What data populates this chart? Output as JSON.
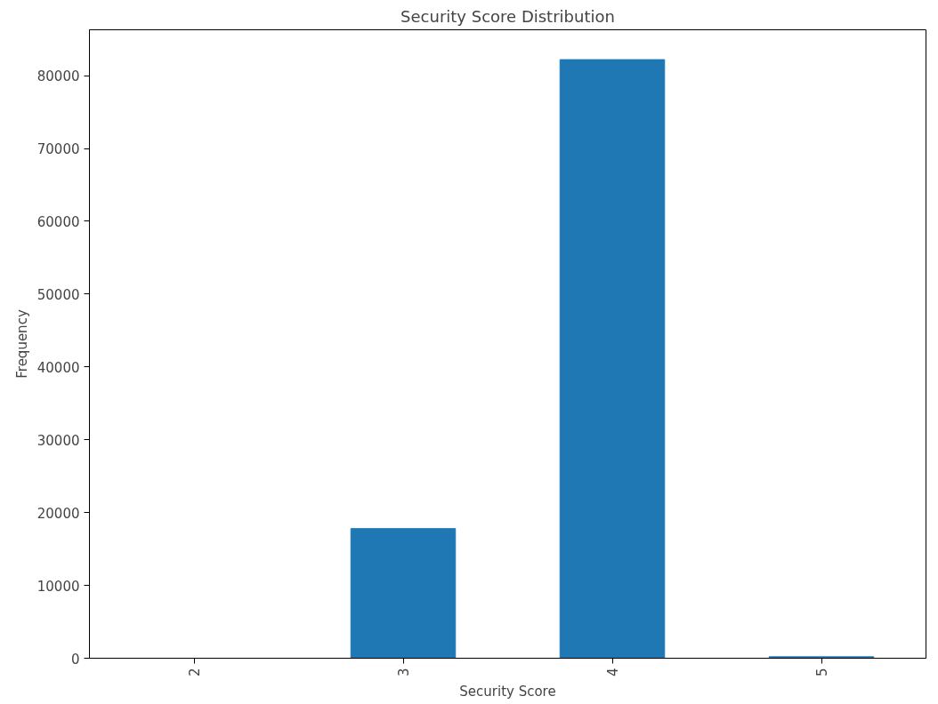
{
  "chart_data": {
    "type": "bar",
    "title": "Security Score Distribution",
    "xlabel": "Security Score",
    "ylabel": "Frequency",
    "categories": [
      "2",
      "3",
      "4",
      "5"
    ],
    "values": [
      0,
      17800,
      82200,
      200
    ],
    "color": "#1f77b4",
    "ylim": [
      0,
      86300
    ],
    "yticks": [
      0,
      10000,
      20000,
      30000,
      40000,
      50000,
      60000,
      70000,
      80000
    ],
    "grid": false
  }
}
